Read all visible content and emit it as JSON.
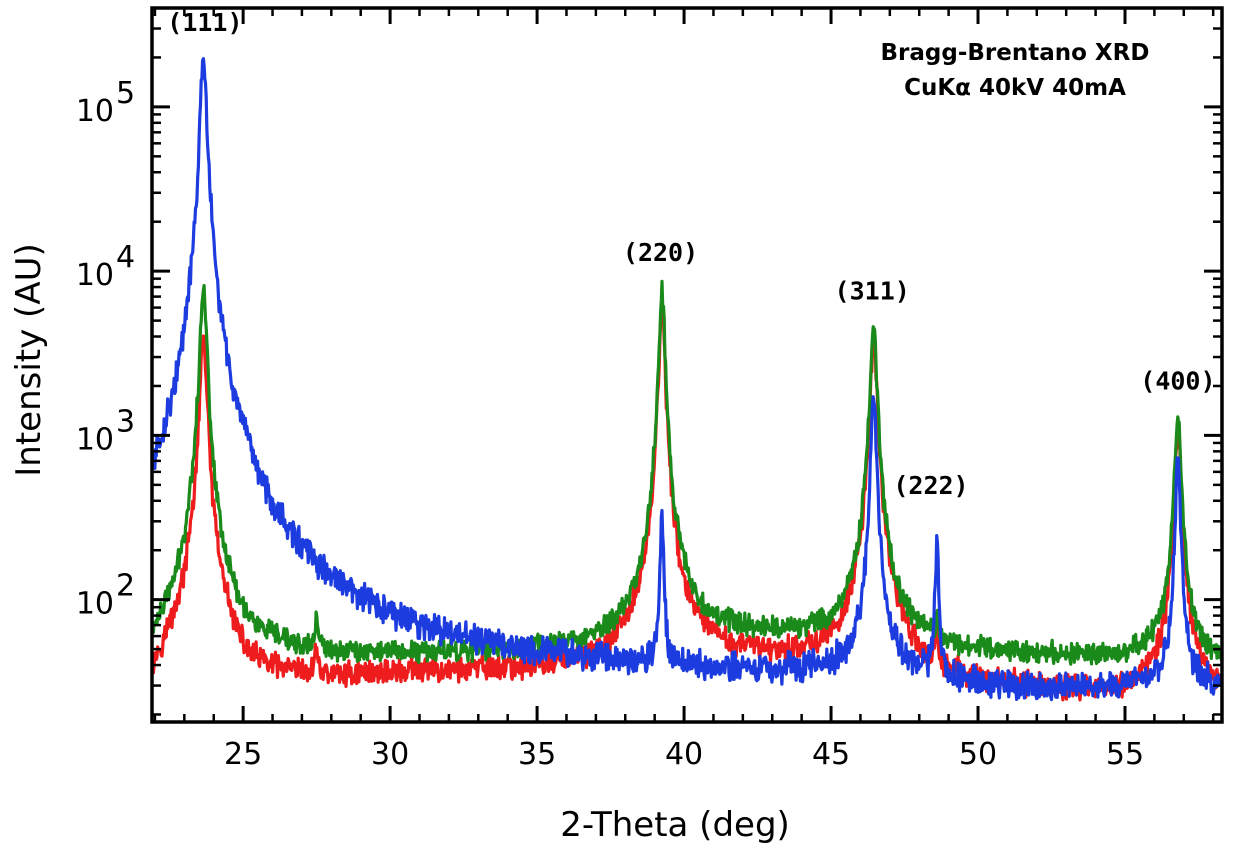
{
  "chart_data": {
    "type": "line",
    "xlabel": "2-Theta (deg)",
    "ylabel": "Intensity (AU)",
    "xlim": [
      21.9,
      58.3
    ],
    "ylim": [
      18,
      400000
    ],
    "yscale": "log",
    "grid": false,
    "x_ticks": [
      25,
      30,
      35,
      40,
      45,
      50,
      55
    ],
    "x_tick_labels": [
      "25",
      "30",
      "35",
      "40",
      "45",
      "50",
      "55"
    ],
    "y_ticks": [
      {
        "value": 100,
        "base": "10",
        "exp": "2"
      },
      {
        "value": 1000,
        "base": "10",
        "exp": "3"
      },
      {
        "value": 10000,
        "base": "10",
        "exp": "4"
      },
      {
        "value": 100000,
        "base": "10",
        "exp": "5"
      }
    ],
    "annotations": [
      {
        "text": "(111)",
        "x": 23.7,
        "y": 290000
      },
      {
        "text": "(220)",
        "x": 39.2,
        "y": 11500
      },
      {
        "text": "(311)",
        "x": 46.4,
        "y": 6700
      },
      {
        "text": "(222)",
        "x": 48.4,
        "y": 440
      },
      {
        "text": "(400)",
        "x": 56.8,
        "y": 1900
      }
    ],
    "info_text": [
      "Bragg-Brentano XRD",
      "CuKα 40kV 40mA"
    ],
    "series": [
      {
        "color": "#ee1c1c",
        "baseline": [
          [
            21.9,
            28
          ],
          [
            23.0,
            60
          ],
          [
            23.3,
            100
          ],
          [
            24.3,
            50
          ],
          [
            25.0,
            33
          ],
          [
            27.3,
            32
          ],
          [
            30,
            35
          ],
          [
            35,
            37
          ],
          [
            37.5,
            40
          ],
          [
            38.6,
            52
          ],
          [
            40.0,
            50
          ],
          [
            41.0,
            46
          ],
          [
            43.0,
            44
          ],
          [
            45.0,
            44
          ],
          [
            45.9,
            55
          ],
          [
            47.0,
            48
          ],
          [
            48.0,
            35
          ],
          [
            50.0,
            30
          ],
          [
            53.0,
            28
          ],
          [
            55.0,
            27
          ],
          [
            56.3,
            33
          ],
          [
            57.3,
            32
          ],
          [
            58.3,
            27
          ]
        ],
        "peaks": [
          [
            23.65,
            4000,
            0.1
          ],
          [
            39.25,
            6000,
            0.09
          ],
          [
            46.45,
            4000,
            0.1
          ],
          [
            48.6,
            30,
            0.05
          ],
          [
            56.8,
            1000,
            0.1
          ],
          [
            27.5,
            20,
            0.05
          ]
        ],
        "noise": 0.14
      },
      {
        "color": "#1a8a1a",
        "baseline": [
          [
            21.9,
            40
          ],
          [
            23.0,
            70
          ],
          [
            23.3,
            130
          ],
          [
            24.3,
            65
          ],
          [
            25.0,
            48
          ],
          [
            27.3,
            45
          ],
          [
            30,
            46
          ],
          [
            35,
            48
          ],
          [
            37.5,
            52
          ],
          [
            38.6,
            62
          ],
          [
            40.0,
            70
          ],
          [
            41.0,
            62
          ],
          [
            43.0,
            60
          ],
          [
            45.0,
            58
          ],
          [
            45.9,
            70
          ],
          [
            47.0,
            60
          ],
          [
            48.0,
            52
          ],
          [
            50.0,
            47
          ],
          [
            53.0,
            45
          ],
          [
            55.0,
            44
          ],
          [
            56.3,
            48
          ],
          [
            57.3,
            44
          ],
          [
            58.3,
            40
          ]
        ],
        "peaks": [
          [
            23.65,
            8000,
            0.1
          ],
          [
            39.25,
            7500,
            0.09
          ],
          [
            46.45,
            4600,
            0.1
          ],
          [
            48.6,
            20,
            0.05
          ],
          [
            56.8,
            1250,
            0.1
          ],
          [
            27.5,
            30,
            0.05
          ]
        ],
        "noise": 0.12
      },
      {
        "color": "#1c3ce0",
        "baseline": [
          [
            21.9,
            45
          ],
          [
            22.7,
            90
          ],
          [
            23.1,
            250
          ],
          [
            24.3,
            300
          ],
          [
            25.0,
            90
          ],
          [
            26.0,
            55
          ],
          [
            27.5,
            40
          ],
          [
            30,
            36
          ],
          [
            35,
            35
          ],
          [
            38.5,
            34
          ],
          [
            40.0,
            33
          ],
          [
            43.0,
            32
          ],
          [
            45.5,
            34
          ],
          [
            47.0,
            34
          ],
          [
            50,
            28
          ],
          [
            53.0,
            27
          ],
          [
            56.0,
            29
          ],
          [
            57.3,
            29
          ],
          [
            58.3,
            27
          ]
        ],
        "peaks": [
          [
            23.65,
            190000,
            0.1
          ],
          [
            39.25,
            300,
            0.05
          ],
          [
            46.45,
            1800,
            0.08
          ],
          [
            48.6,
            200,
            0.05
          ],
          [
            56.8,
            700,
            0.07
          ],
          [
            22.5,
            120,
            0.05
          ]
        ],
        "noise": 0.16
      }
    ]
  }
}
